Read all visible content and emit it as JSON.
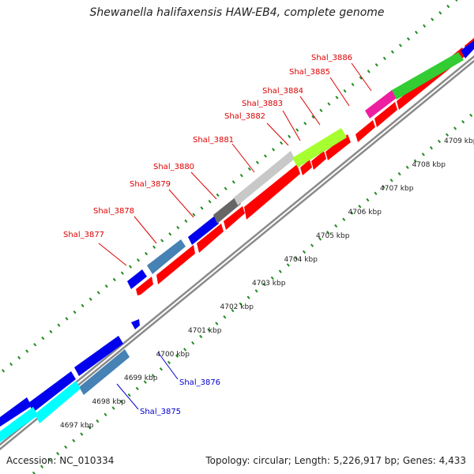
{
  "header": {
    "title": "Shewanella halifaxensis HAW-EB4, complete genome"
  },
  "footer": {
    "accession": "Accession: NC_010334",
    "summary": "Topology: circular; Length: 5,226,917 bp; Genes: 4,433"
  },
  "colors": {
    "backbone": "#909090",
    "tick_outer": "#228b22",
    "tick_inner": "#228b22",
    "forward_label": "#dd0000",
    "reverse_label": "#0000cc",
    "cds": "#ff0000",
    "blue": "#0000ee",
    "steelblue": "#4682b4",
    "darkgray": "#666666",
    "lightgray": "#c8c8c8",
    "yellowgreen": "#a6ff2e",
    "magenta": "#ee1ea0",
    "green": "#33cc33",
    "cyan": "#00ffff"
  },
  "scale_labels": [
    "4697 kbp",
    "4698 kbp",
    "4699 kbp",
    "4700 kbp",
    "4701 kbp",
    "4702 kbp",
    "4703 kbp",
    "4704 kbp",
    "4705 kbp",
    "4706 kbp",
    "4707 kbp",
    "4708 kbp",
    "4709 kbp"
  ],
  "gene_labels_forward": [
    "Shal_3877",
    "Shal_3878",
    "Shal_3879",
    "Shal_3880",
    "Shal_3881",
    "Shal_3882",
    "Shal_3883",
    "Shal_3884",
    "Shal_3885",
    "Shal_3886"
  ],
  "gene_labels_reverse": [
    "Shal_3876",
    "Shal_3875"
  ]
}
